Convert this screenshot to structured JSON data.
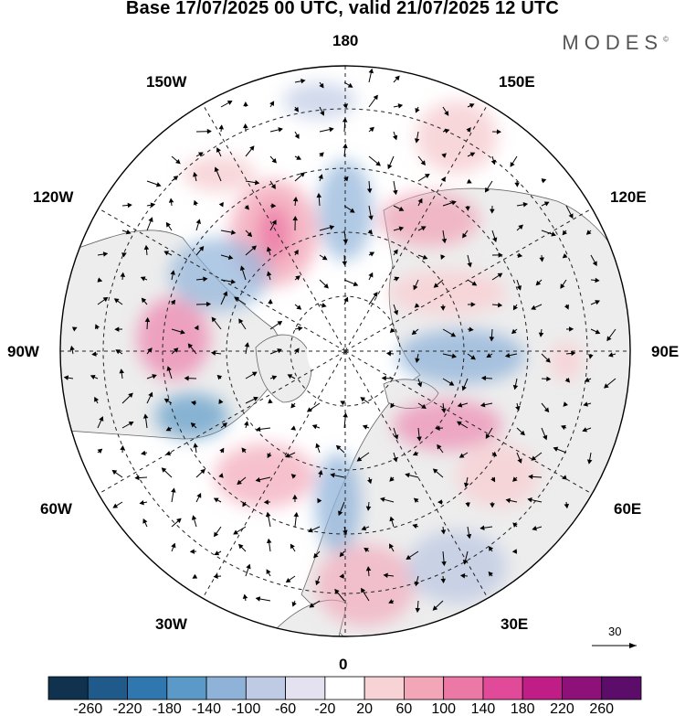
{
  "title": "Base 17/07/2025 00 UTC, valid 21/07/2025 12 UTC",
  "brand": "MODES",
  "brand_mark": "©",
  "longitude_labels": {
    "top": "180",
    "bottom": "0",
    "left": "90W",
    "right": "90E",
    "upper_left": "150W",
    "upper_right": "150E",
    "mid_upper_left": "120W",
    "mid_upper_right": "120E",
    "mid_lower_left": "60W",
    "mid_lower_right": "60E",
    "lower_left": "30W",
    "lower_right": "30E"
  },
  "vector_reference": {
    "value": "30",
    "icon": "reference-arrow-icon"
  },
  "colorbar": {
    "labels": [
      "-260",
      "-220",
      "-180",
      "-140",
      "-100",
      "-60",
      "-20",
      "20",
      "60",
      "100",
      "140",
      "180",
      "220",
      "260"
    ],
    "colors": [
      "#10324f",
      "#1f5a8a",
      "#2f77ae",
      "#5b9ac8",
      "#8fb2d9",
      "#bfcae4",
      "#e4e2f1",
      "#ffffff",
      "#f7d3d6",
      "#f2a6b8",
      "#ec78a6",
      "#e04a98",
      "#c11d86",
      "#8d1178",
      "#5c0d6a"
    ]
  },
  "map_style": {
    "land_color": "#ededed",
    "ocean_color": "#ffffff",
    "coast_color": "#555555",
    "grid": "dashed"
  }
}
